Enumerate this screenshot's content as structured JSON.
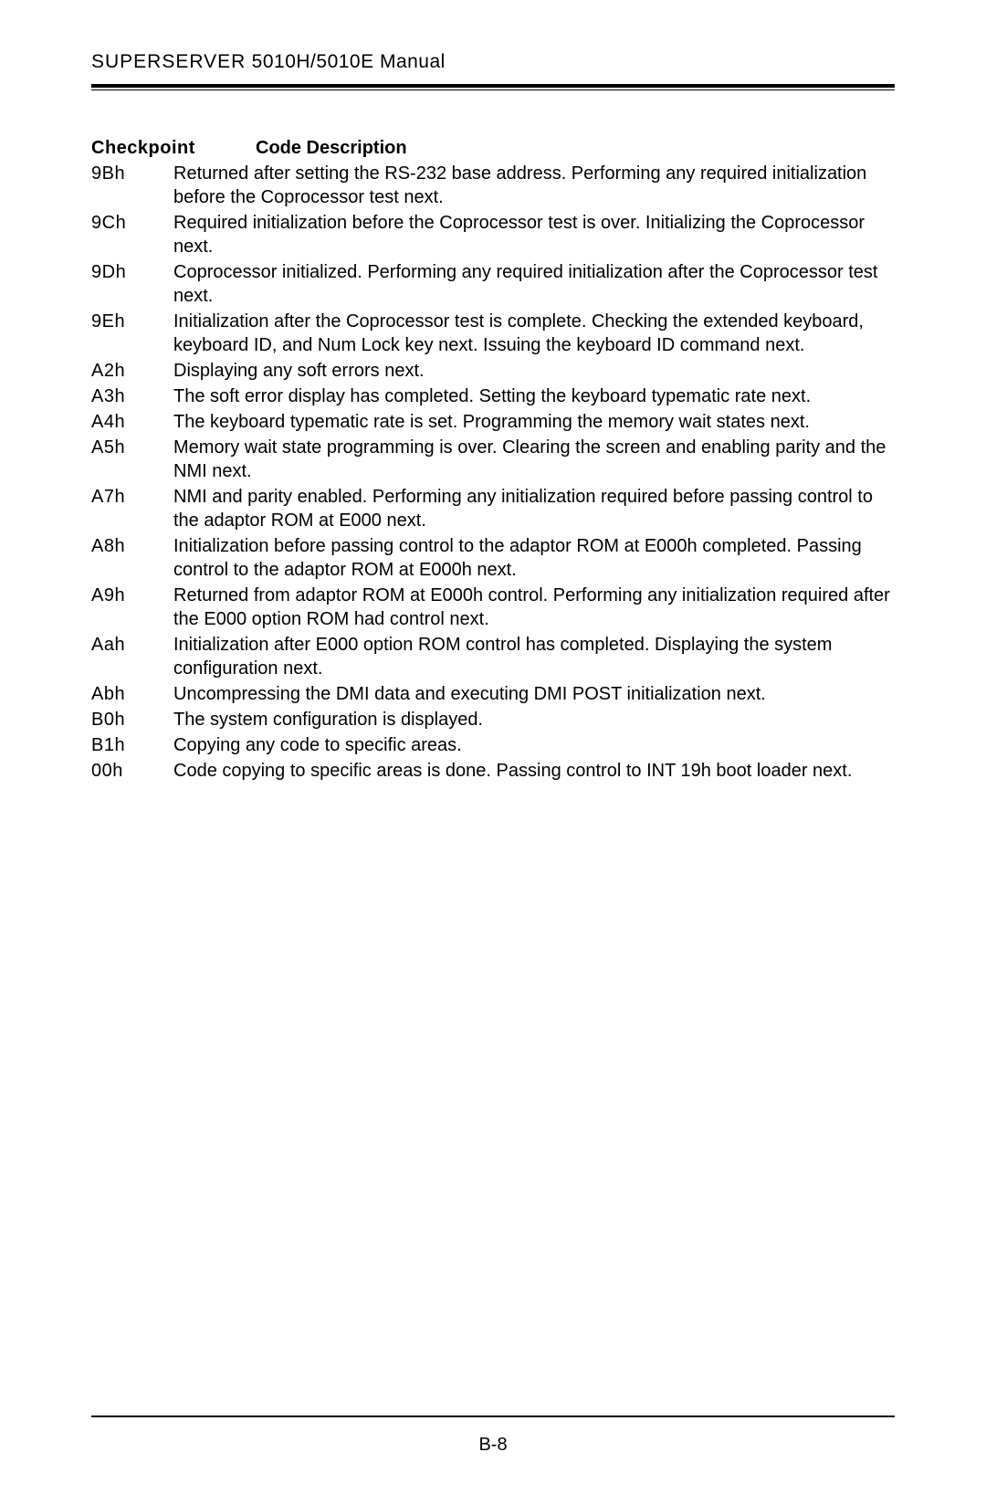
{
  "header": {
    "title_caps": "SUPERSERVER",
    "title_rest": " 5010H/5010E Manual"
  },
  "table": {
    "head_checkpoint": "Checkpoint",
    "head_code_desc": "Code  Description",
    "rows": [
      {
        "code": "9Bh",
        "desc": "Returned after setting the RS-232 base address. Performing any required initialization before the Coprocessor test next."
      },
      {
        "code": "9Ch",
        "desc": "Required initialization before the Coprocessor test is over. Initializing the Coprocessor next."
      },
      {
        "code": "9Dh",
        "desc": "Coprocessor initialized. Performing any required initialization after the Coprocessor test next."
      },
      {
        "code": "9Eh",
        "desc": "Initialization after the Coprocessor test is complete. Checking the extended keyboard, keyboard ID, and Num Lock key next. Issuing the keyboard ID command next."
      },
      {
        "code": "A2h",
        "desc": "Displaying any soft errors next."
      },
      {
        "code": "A3h",
        "desc": "The soft error display has completed. Setting the keyboard typematic rate next."
      },
      {
        "code": "A4h",
        "desc": "The keyboard typematic rate is set. Programming the memory wait states next."
      },
      {
        "code": "A5h",
        "desc": "Memory wait state programming is over. Clearing the screen and enabling parity and the NMI next."
      },
      {
        "code": "A7h",
        "desc": "NMI and parity enabled. Performing any initialization required before passing control to the adaptor ROM at E000 next."
      },
      {
        "code": "A8h",
        "desc": "Initialization before passing control to the adaptor ROM at E000h completed. Passing control to the adaptor ROM at E000h next."
      },
      {
        "code": "A9h",
        "desc": "Returned from adaptor ROM at E000h control. Performing any initialization required after the E000 option ROM had control next."
      },
      {
        "code": "Aah",
        "desc": "Initialization after E000 option ROM control has completed. Displaying the system configuration next."
      },
      {
        "code": "Abh",
        "desc": "Uncompressing the DMI data and executing DMI POST initialization next."
      },
      {
        "code": "B0h",
        "desc": "The system configuration is displayed."
      },
      {
        "code": "B1h",
        "desc": "Copying any code to specific areas."
      },
      {
        "code": "00h",
        "desc": "Code copying to specific areas is done. Passing control to INT 19h boot loader next."
      }
    ]
  },
  "footer": {
    "page_number": "B-8"
  }
}
